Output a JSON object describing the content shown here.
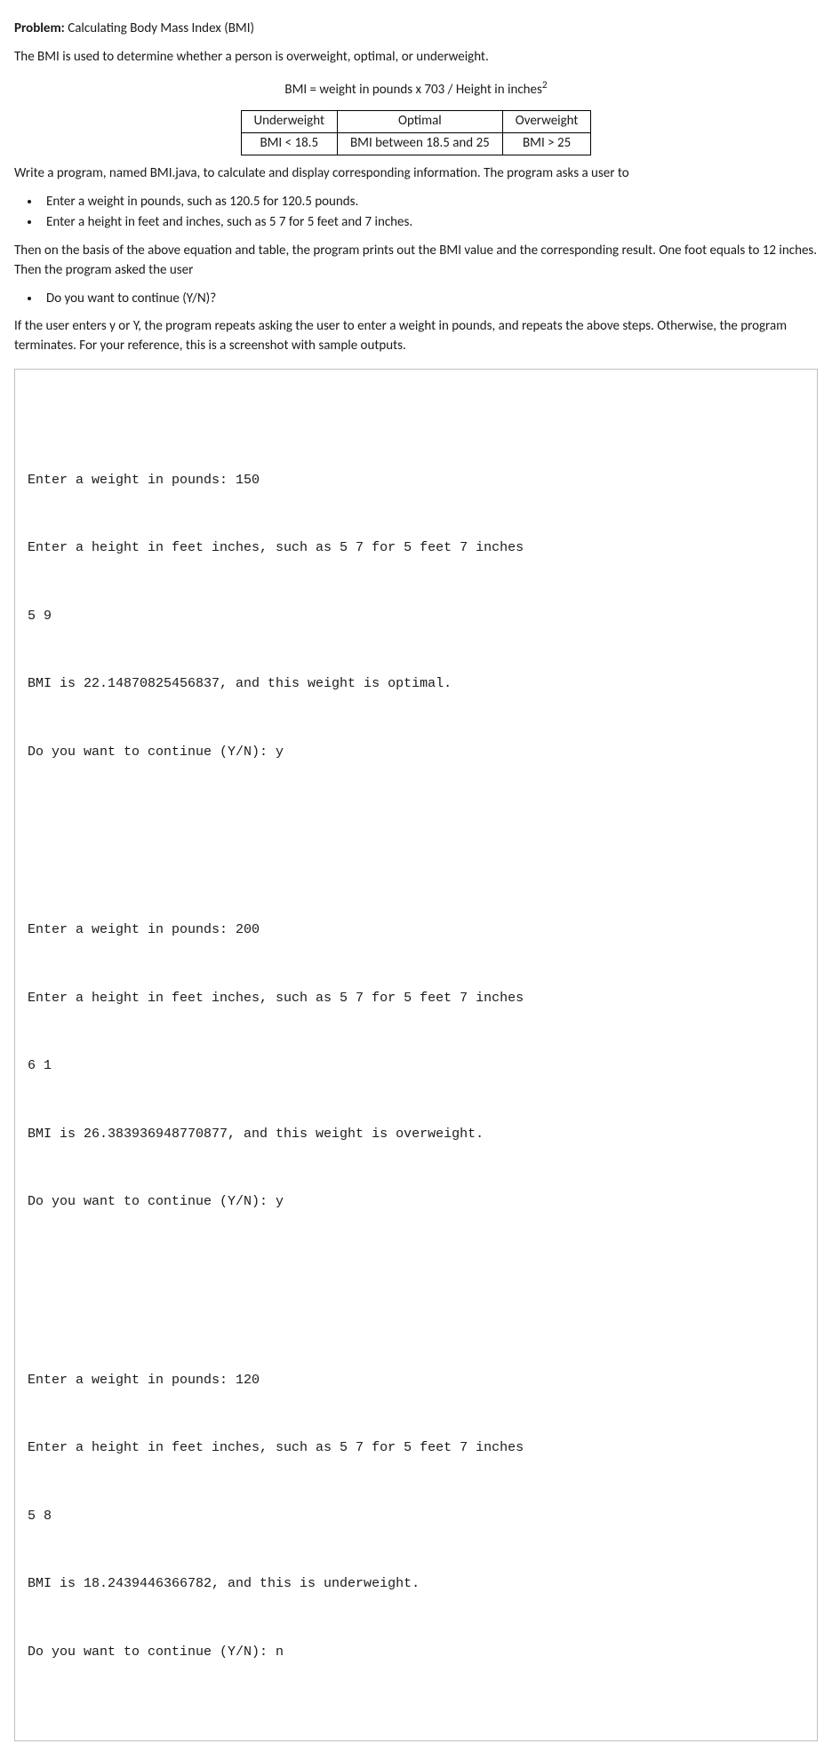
{
  "header": {
    "label": "Problem:",
    "title": "Calculating Body Mass Index (BMI)"
  },
  "intro": "The BMI is used to determine whether a person is overweight, optimal, or underweight.",
  "formula": "BMI = weight in pounds x 703 / Height in inches",
  "formula_sup": "2",
  "table": {
    "r1c1": "Underweight",
    "r1c2": "Optimal",
    "r1c3": "Overweight",
    "r2c1": "BMI < 18.5",
    "r2c2": "BMI between 18.5 and 25",
    "r2c3": "BMI > 25"
  },
  "para1": "Write a program, named BMI.java, to calculate and display corresponding information. The program asks a user to",
  "list1": {
    "i1": "Enter a weight in pounds, such as 120.5 for 120.5 pounds.",
    "i2": "Enter a height in feet and inches, such as 5 7 for 5 feet and 7 inches."
  },
  "para2": "Then on the basis of the above equation and table, the program prints out the BMI value and the corresponding result. One foot equals to 12 inches. Then the program asked the user",
  "list2": {
    "i1": "Do you want to continue (Y/N)?"
  },
  "para3": "If the user enters y or Y, the program repeats asking the user to enter a weight in pounds, and repeats the above steps. Otherwise, the program terminates. For your reference, this is a screenshot with sample outputs.",
  "output": {
    "b1": {
      "l1": "Enter a weight in pounds: 150",
      "l2": "Enter a height in feet inches, such as 5 7 for 5 feet 7 inches",
      "l3": "5 9",
      "l4": "BMI is 22.14870825456837, and this weight is optimal.",
      "l5": "Do you want to continue (Y/N): y"
    },
    "b2": {
      "l1": "Enter a weight in pounds: 200",
      "l2": "Enter a height in feet inches, such as 5 7 for 5 feet 7 inches",
      "l3": "6 1",
      "l4": "BMI is 26.383936948770877, and this weight is overweight.",
      "l5": "Do you want to continue (Y/N): y"
    },
    "b3": {
      "l1": "Enter a weight in pounds: 120",
      "l2": "Enter a height in feet inches, such as 5 7 for 5 feet 7 inches",
      "l3": "5 8",
      "l4": "BMI is 18.2439446366782, and this is underweight.",
      "l5": "Do you want to continue (Y/N): n"
    }
  }
}
